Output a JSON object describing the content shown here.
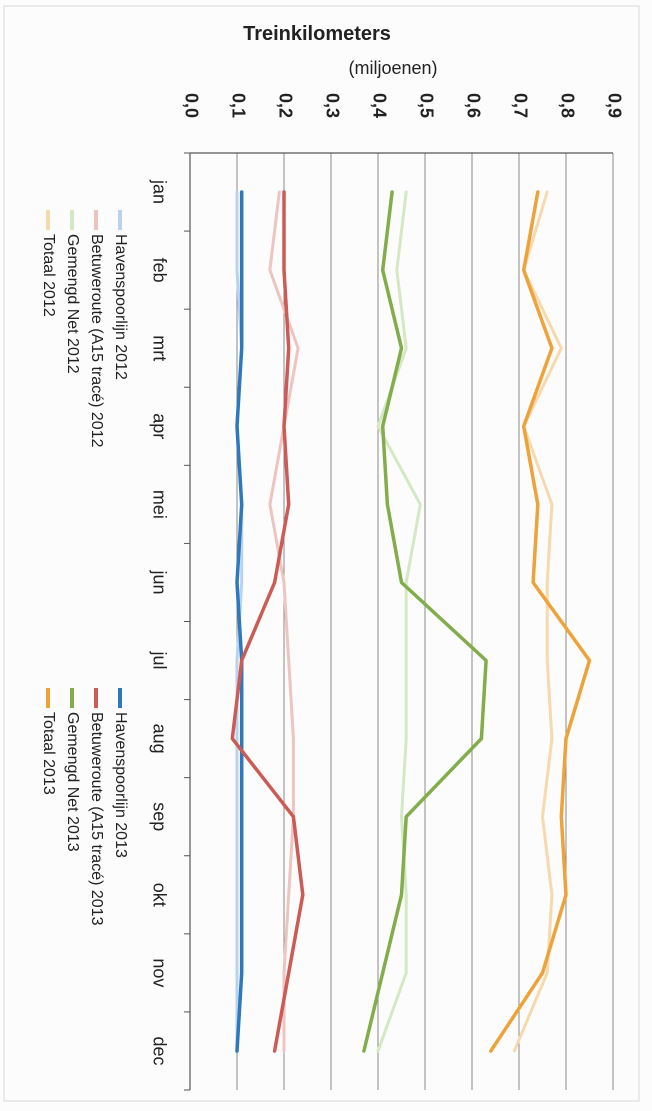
{
  "chart_data": {
    "type": "line",
    "title": "Treinkilometers",
    "subtitle": "(miljoenen)",
    "categories": [
      "jan",
      "feb",
      "mrt",
      "apr",
      "mei",
      "jun",
      "jul",
      "aug",
      "sep",
      "okt",
      "nov",
      "dec"
    ],
    "ylim": [
      0,
      0.9
    ],
    "yticks": [
      "0,0",
      "0,1",
      "0,2",
      "0,3",
      "0,4",
      "0,5",
      "0,6",
      "0,7",
      "0,8",
      "0,9"
    ],
    "grid": true,
    "legend_position": "bottom",
    "series": [
      {
        "name": "Havenspoorlijn 2012",
        "color": "#b9d3ee",
        "values": [
          0.1,
          0.1,
          0.11,
          0.1,
          0.11,
          0.11,
          0.1,
          0.1,
          0.1,
          0.1,
          0.1,
          0.1
        ]
      },
      {
        "name": "Betuweroute (A15 tracé) 2012",
        "color": "#edc4c0",
        "values": [
          0.19,
          0.17,
          0.23,
          0.2,
          0.17,
          0.2,
          0.21,
          0.22,
          0.22,
          0.21,
          0.2,
          0.2
        ]
      },
      {
        "name": "Gemengd Net 2012",
        "color": "#d4e8c4",
        "values": [
          0.46,
          0.44,
          0.46,
          0.4,
          0.49,
          0.46,
          0.46,
          0.46,
          0.45,
          0.46,
          0.46,
          0.4
        ]
      },
      {
        "name": "Totaal 2012",
        "color": "#f8d9ad",
        "values": [
          0.76,
          0.71,
          0.79,
          0.71,
          0.77,
          0.76,
          0.76,
          0.77,
          0.75,
          0.77,
          0.76,
          0.69
        ]
      },
      {
        "name": "Havenspoorlijn 2013",
        "color": "#2e78be",
        "values": [
          0.11,
          0.11,
          0.11,
          0.1,
          0.11,
          0.1,
          0.11,
          0.11,
          0.11,
          0.11,
          0.11,
          0.1
        ]
      },
      {
        "name": "Betuweroute (A15 tracé) 2013",
        "color": "#cc5b55",
        "values": [
          0.2,
          0.2,
          0.21,
          0.2,
          0.21,
          0.18,
          0.11,
          0.09,
          0.22,
          0.24,
          0.21,
          0.18
        ]
      },
      {
        "name": "Gemengd Net 2013",
        "color": "#82ad4a",
        "values": [
          0.43,
          0.41,
          0.45,
          0.41,
          0.42,
          0.45,
          0.63,
          0.62,
          0.46,
          0.45,
          0.41,
          0.37
        ]
      },
      {
        "name": "Totaal 2013",
        "color": "#eea23a",
        "values": [
          0.74,
          0.71,
          0.77,
          0.71,
          0.74,
          0.73,
          0.85,
          0.8,
          0.79,
          0.8,
          0.75,
          0.64
        ]
      }
    ]
  }
}
